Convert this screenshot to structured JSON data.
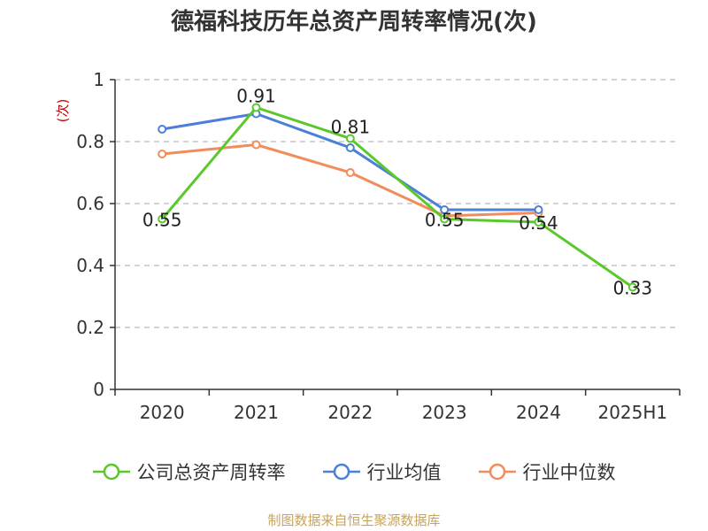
{
  "chart_data": {
    "type": "line",
    "title": "德福科技历年总资产周转率情况(次)",
    "ylabel": "(次)",
    "xlabel": "",
    "categories": [
      "2020",
      "2021",
      "2022",
      "2023",
      "2024",
      "2025H1"
    ],
    "ylim": [
      0,
      1
    ],
    "yticks": [
      0,
      0.2,
      0.4,
      0.6,
      0.8,
      1
    ],
    "ytick_labels": [
      "0",
      "0.2",
      "0.4",
      "0.6",
      "0.8",
      "1"
    ],
    "grid": true,
    "legend_position": "bottom",
    "series": [
      {
        "name": "公司总资产周转率",
        "color": "#5ac82b",
        "values": [
          0.55,
          0.91,
          0.81,
          0.55,
          0.54,
          0.33
        ],
        "labels": [
          "0.55",
          "0.91",
          "0.81",
          "0.55",
          "0.54",
          "0.33"
        ],
        "show_labels": true
      },
      {
        "name": "行业均值",
        "color": "#4b7fd8",
        "values": [
          0.84,
          0.89,
          0.78,
          0.58,
          0.58,
          null
        ],
        "show_labels": false
      },
      {
        "name": "行业中位数",
        "color": "#f28c5a",
        "values": [
          0.76,
          0.79,
          0.7,
          0.56,
          0.57,
          null
        ],
        "show_labels": false
      }
    ]
  },
  "source": "制图数据来自恒生聚源数据库",
  "colors": {
    "title": "#333333",
    "axis": "#333333",
    "grid": "#bbbbbb",
    "ylabel": "#cc0000",
    "source": "#c8a35a"
  }
}
